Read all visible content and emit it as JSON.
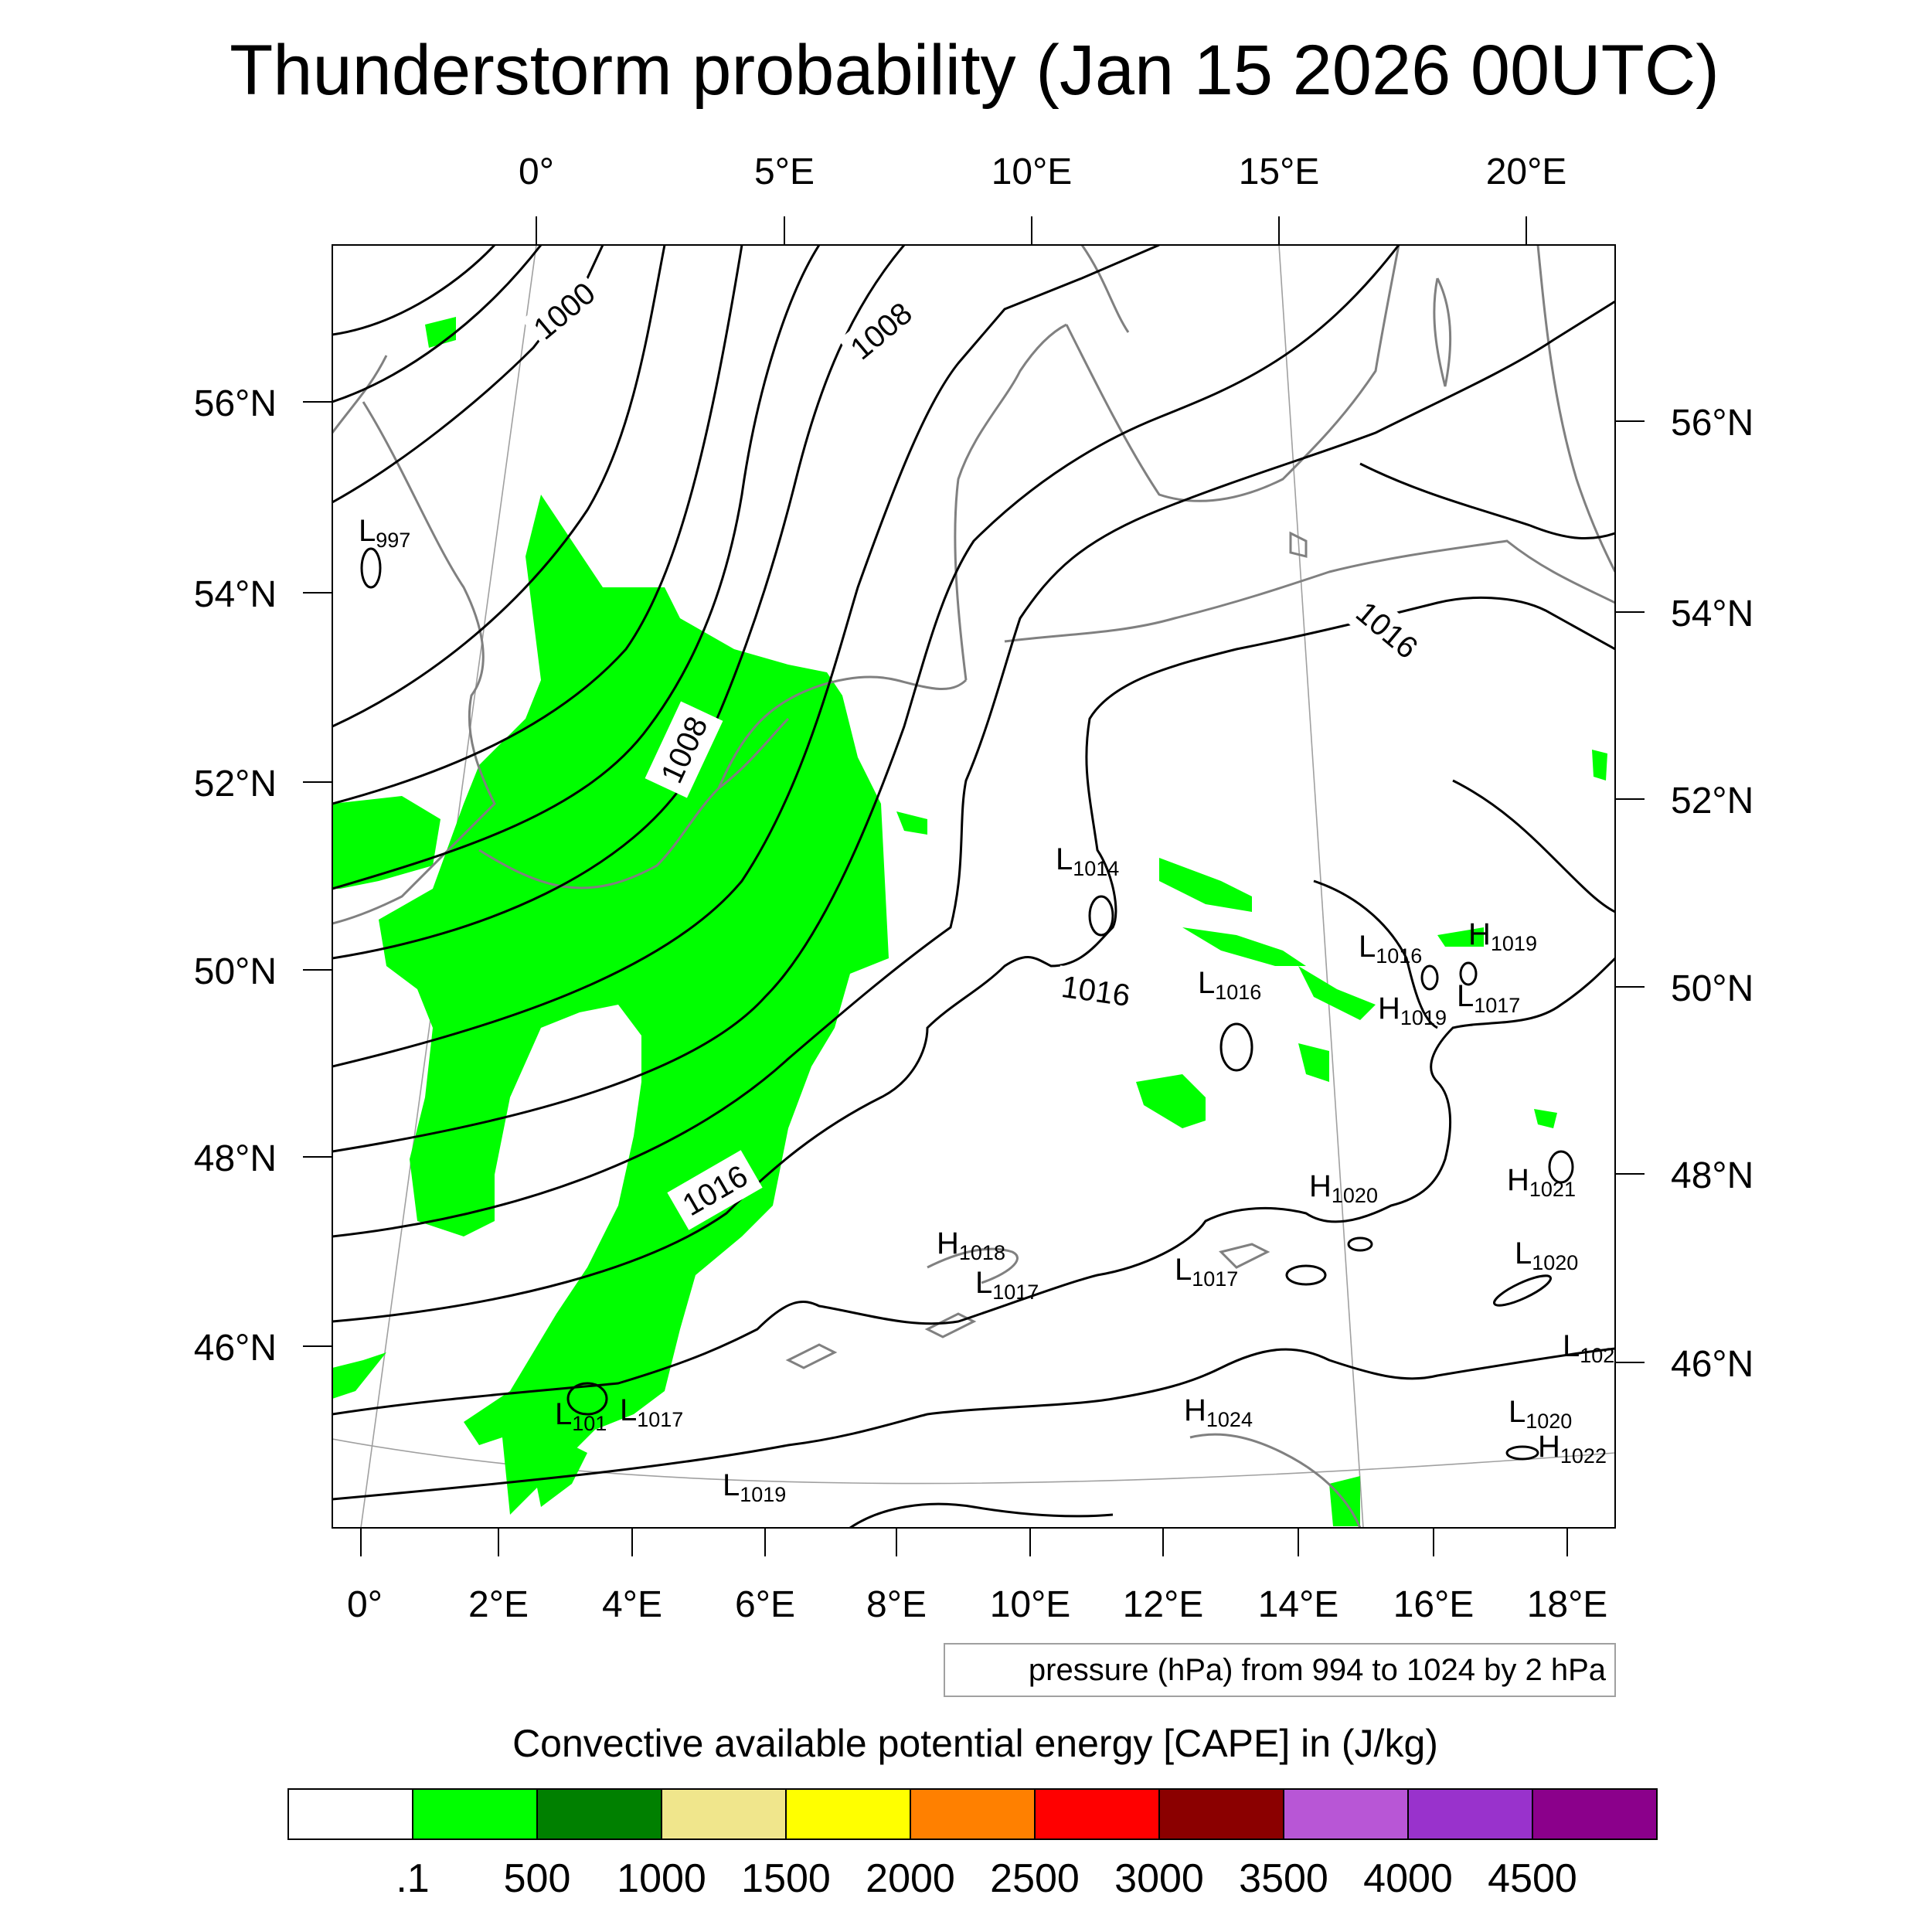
{
  "title": "Thunderstorm probability (Jan 15 2026 00UTC)",
  "top_lon_labels": [
    "0°",
    "5°E",
    "10°E",
    "15°E",
    "20°E"
  ],
  "bottom_lon_labels": [
    "0°",
    "2°E",
    "4°E",
    "6°E",
    "8°E",
    "10°E",
    "12°E",
    "14°E",
    "16°E",
    "18°E"
  ],
  "left_lat_labels": [
    "56°N",
    "54°N",
    "52°N",
    "50°N",
    "48°N",
    "46°N"
  ],
  "right_lat_labels": [
    "56°N",
    "54°N",
    "52°N",
    "50°N",
    "48°N",
    "46°N"
  ],
  "contour_labels": [
    "1000",
    "1008",
    "1008",
    "1016",
    "1016",
    "1016"
  ],
  "pressure_centers": [
    {
      "type": "L",
      "value": "997"
    },
    {
      "type": "L",
      "value": "1014"
    },
    {
      "type": "L",
      "value": "1016"
    },
    {
      "type": "L",
      "value": "1016"
    },
    {
      "type": "H",
      "value": "1019"
    },
    {
      "type": "H",
      "value": "1019"
    },
    {
      "type": "L",
      "value": "1017"
    },
    {
      "type": "H",
      "value": "1020"
    },
    {
      "type": "H",
      "value": "1021"
    },
    {
      "type": "L",
      "value": "1020"
    },
    {
      "type": "L",
      "value": "102"
    },
    {
      "type": "H",
      "value": "1018"
    },
    {
      "type": "L",
      "value": "1017"
    },
    {
      "type": "L",
      "value": "1017"
    },
    {
      "type": "H",
      "value": "1024"
    },
    {
      "type": "L",
      "value": "101"
    },
    {
      "type": "L",
      "value": "1017"
    },
    {
      "type": "L",
      "value": "1019"
    },
    {
      "type": "L",
      "value": "1020"
    },
    {
      "type": "H",
      "value": "1022"
    }
  ],
  "contour_note": "pressure (hPa) from 994 to 1024 by 2 hPa",
  "colorbar": {
    "title": "Convective available potential energy [CAPE] in (J/kg)",
    "labels": [
      ".1",
      "500",
      "1000",
      "1500",
      "2000",
      "2500",
      "3000",
      "3500",
      "4000",
      "4500"
    ],
    "colors": [
      "#ffffff",
      "#00ff00",
      "#008000",
      "#f0e68c",
      "#ffff00",
      "#ff8000",
      "#ff0000",
      "#8b0000",
      "#b856d6",
      "#9932cc",
      "#8b008b"
    ]
  },
  "colors": {
    "cape_fill": "#00ff00",
    "isobar": "#000000",
    "coastline": "#808080",
    "grid": "#a0a0a0"
  }
}
